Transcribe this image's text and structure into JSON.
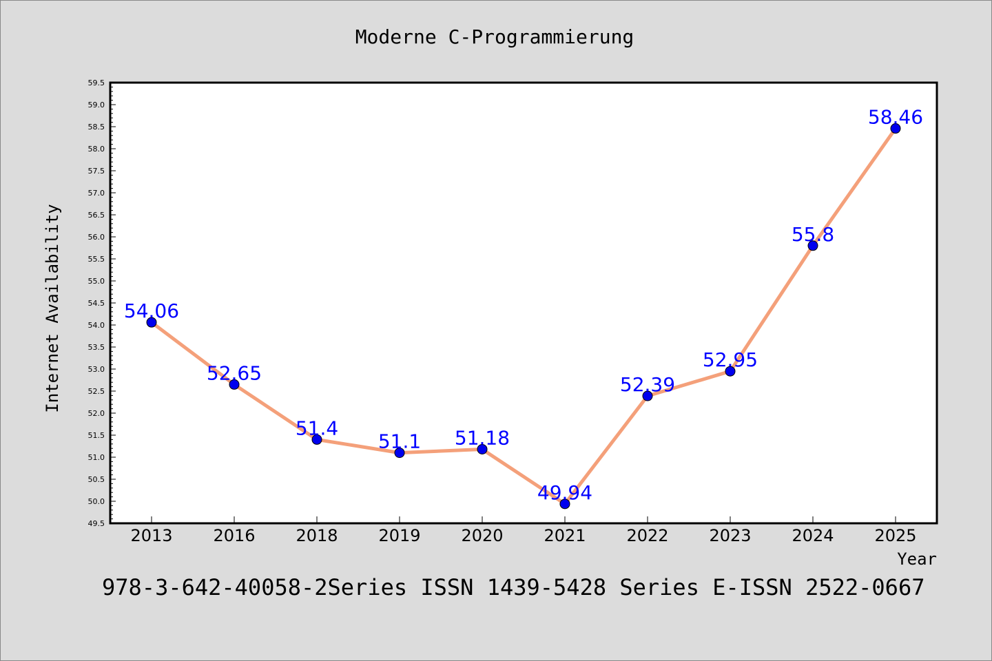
{
  "chart_data": {
    "type": "line",
    "title": "Moderne C-Programmierung",
    "xlabel": "Year",
    "ylabel": "Internet Availability",
    "categories": [
      "2013",
      "2016",
      "2018",
      "2019",
      "2020",
      "2021",
      "2022",
      "2023",
      "2024",
      "2025"
    ],
    "series": [
      {
        "values": [
          54.06,
          52.65,
          51.4,
          51.1,
          51.18,
          49.94,
          52.39,
          52.95,
          55.8,
          58.46
        ],
        "labels": [
          "54.06",
          "52.65",
          "51.4",
          "51.1",
          "51.18",
          "49.94",
          "52.39",
          "52.95",
          "55.8",
          "58.46"
        ],
        "line_color": "#f4a07a",
        "marker_color": "#0000ee"
      }
    ],
    "ylim": [
      49.5,
      59.5
    ],
    "yticks": [
      "49.5",
      "50.0",
      "50.5",
      "51.0",
      "51.5",
      "52.0",
      "52.5",
      "53.0",
      "53.5",
      "54.0",
      "54.5",
      "55.0",
      "55.5",
      "56.0",
      "56.5",
      "57.0",
      "57.5",
      "58.0",
      "58.5",
      "59.0",
      "59.5"
    ],
    "grid": false,
    "data_label_color": "#0000ff"
  },
  "footer_text": "978-3-642-40058-2Series ISSN 1439-5428 Series E-ISSN 2522-0667"
}
